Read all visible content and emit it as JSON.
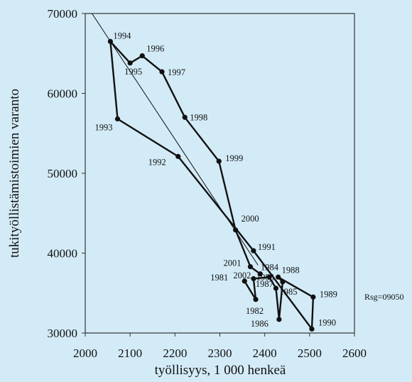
{
  "chart_data": {
    "type": "line",
    "title": "",
    "xlabel": "työllisyys, 1 000 henkeä",
    "ylabel": "tukityöllistämistoimien varanto",
    "xlim": [
      2000,
      2600
    ],
    "ylim": [
      30000,
      70000
    ],
    "x_ticks": [
      "2000",
      "2100",
      "2200",
      "2300",
      "2400",
      "2500",
      "2600"
    ],
    "y_ticks": [
      "30000",
      "40000",
      "50000",
      "60000",
      "70000"
    ],
    "grid": false,
    "note": "Rsg=09050",
    "trend_line": {
      "x": [
        2015,
        2385
      ],
      "y": [
        70000,
        38500
      ]
    },
    "series": [
      {
        "points": [
          {
            "label": "1981",
            "x": 2355,
            "y": 36500
          },
          {
            "label": "1982",
            "x": 2380,
            "y": 34200
          },
          {
            "label": "1983",
            "x": 2375,
            "y": 36800
          },
          {
            "label": "1984",
            "x": 2410,
            "y": 37000
          },
          {
            "label": "1985",
            "x": 2425,
            "y": 35600
          },
          {
            "label": "1986",
            "x": 2432,
            "y": 31700
          },
          {
            "label": "1987",
            "x": 2440,
            "y": 36400
          },
          {
            "label": "1988",
            "x": 2430,
            "y": 37000
          },
          {
            "label": "1989",
            "x": 2508,
            "y": 34500
          },
          {
            "label": "1990",
            "x": 2505,
            "y": 30500
          },
          {
            "label": "1991",
            "x": 2375,
            "y": 40300
          },
          {
            "label": "1992",
            "x": 2207,
            "y": 52100
          },
          {
            "label": "1993",
            "x": 2072,
            "y": 56800
          },
          {
            "label": "1994",
            "x": 2056,
            "y": 66500
          },
          {
            "label": "1995",
            "x": 2100,
            "y": 63800
          },
          {
            "label": "1996",
            "x": 2127,
            "y": 64700
          },
          {
            "label": "1997",
            "x": 2171,
            "y": 62700
          },
          {
            "label": "1998",
            "x": 2222,
            "y": 57000
          },
          {
            "label": "1999",
            "x": 2298,
            "y": 51500
          },
          {
            "label": "2000",
            "x": 2335,
            "y": 42900
          },
          {
            "label": "2001",
            "x": 2368,
            "y": 38300
          },
          {
            "label": "2002",
            "x": 2390,
            "y": 37400
          }
        ]
      }
    ]
  }
}
